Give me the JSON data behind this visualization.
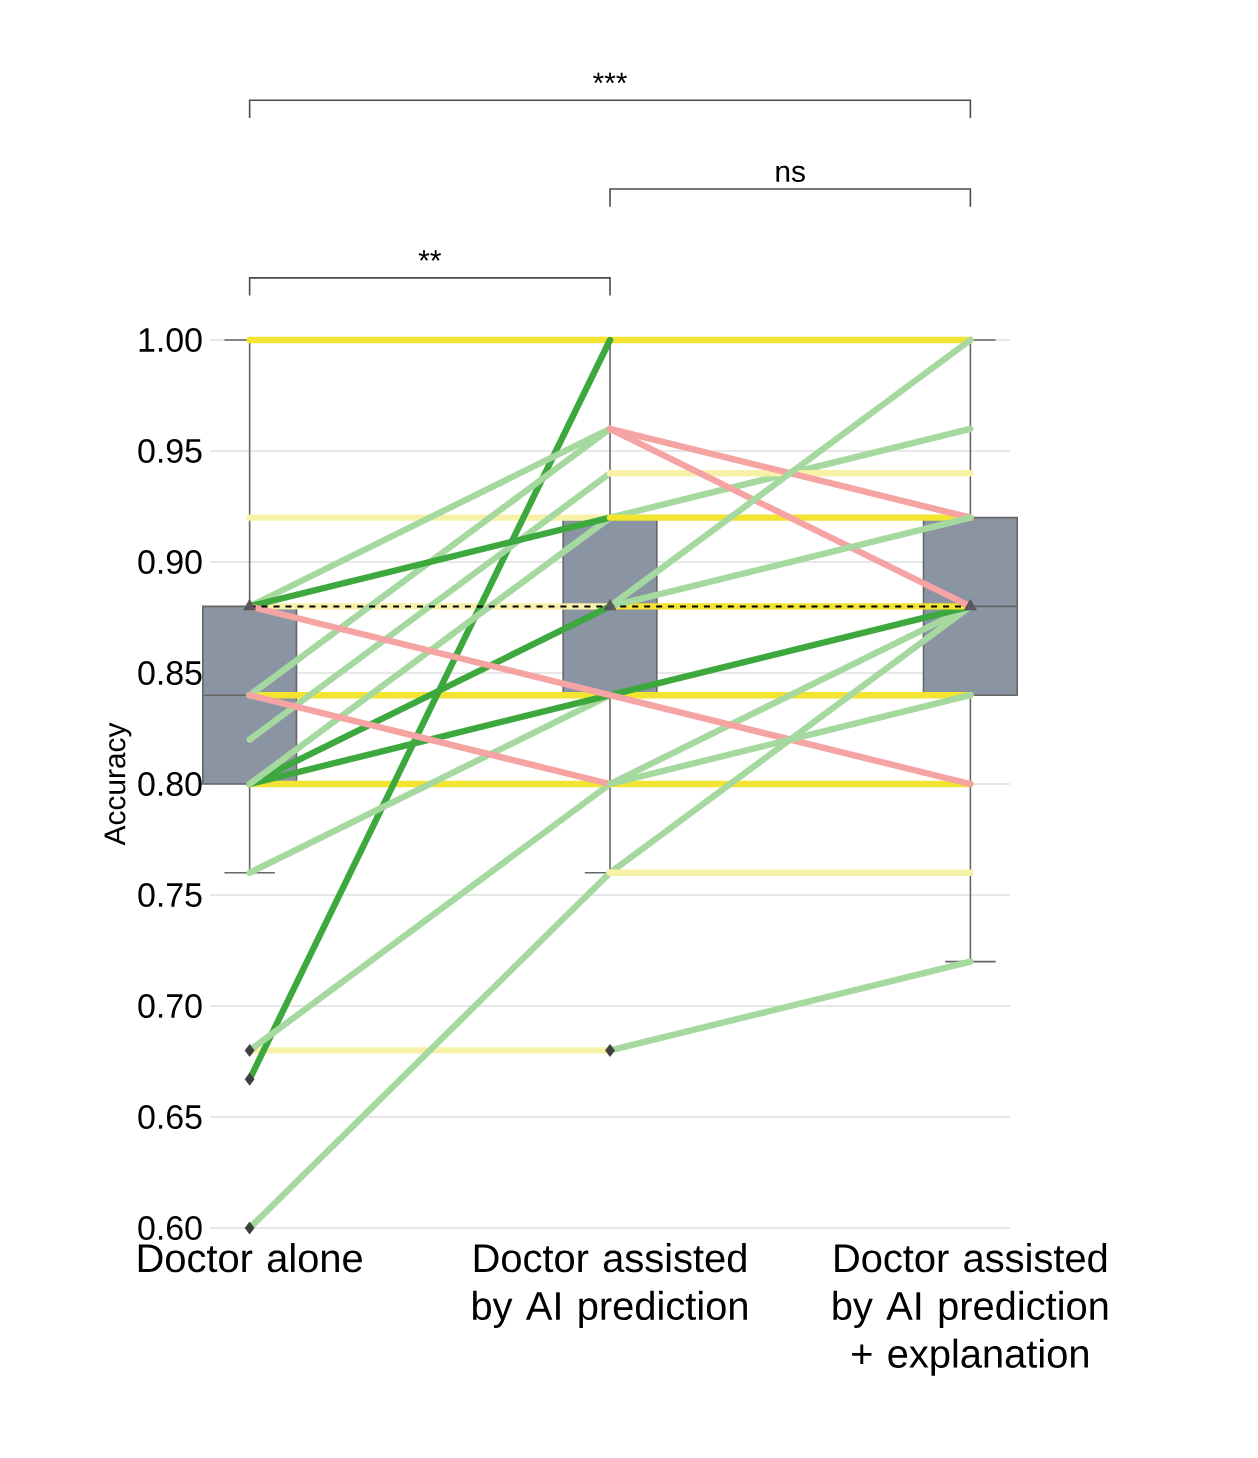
{
  "chart_data": {
    "type": "box",
    "ylabel": "Accuracy",
    "categories": [
      "Doctor alone",
      "Doctor assisted by AI prediction",
      "Doctor assisted by AI prediction + explanation"
    ],
    "color": "#8a94a3",
    "boxes": [
      {
        "low": 0.76,
        "q1": 0.8,
        "median": 0.84,
        "q3": 0.88,
        "high": 1.0,
        "mean": 0.88,
        "outliers": [
          0.68,
          0.667,
          0.6
        ]
      },
      {
        "low": 0.76,
        "q1": 0.84,
        "median": 0.88,
        "q3": 0.92,
        "high": 1.0,
        "mean": 0.88,
        "outliers": [
          0.68
        ]
      },
      {
        "low": 0.72,
        "q1": 0.84,
        "median": 0.88,
        "q3": 0.92,
        "high": 1.0,
        "mean": 0.88
      }
    ],
    "series": [
      {
        "type": "line",
        "color": "#f2e430",
        "values": [
          1.0,
          1.0,
          1.0
        ]
      },
      {
        "type": "line",
        "color": "#f8f1a8",
        "values": [
          0.92,
          0.92,
          null
        ]
      },
      {
        "type": "line",
        "color": "#f8f1a8",
        "values": [
          0.88,
          0.88,
          null
        ]
      },
      {
        "type": "line",
        "color": "#f2e430",
        "values": [
          0.84,
          0.84,
          0.84
        ]
      },
      {
        "type": "line",
        "color": "#f2e430",
        "values": [
          0.8,
          0.8,
          0.8
        ]
      },
      {
        "type": "line",
        "color": "#f8f1a8",
        "values": [
          0.68,
          0.68,
          null
        ]
      },
      {
        "type": "line",
        "color": "#3da83d",
        "values": [
          0.667,
          1.0,
          null
        ]
      },
      {
        "type": "line",
        "color": "#a6d9a0",
        "values": [
          0.6,
          0.76,
          0.88
        ]
      },
      {
        "type": "line",
        "color": "#a6d9a0",
        "values": [
          0.68,
          0.8,
          0.88
        ]
      },
      {
        "type": "line",
        "color": "#a6d9a0",
        "values": [
          0.76,
          0.84,
          null
        ]
      },
      {
        "type": "line",
        "color": "#3da83d",
        "values": [
          0.8,
          0.84,
          0.88
        ]
      },
      {
        "type": "line",
        "color": "#3da83d",
        "values": [
          0.8,
          0.88,
          null
        ]
      },
      {
        "type": "line",
        "color": "#a6d9a0",
        "values": [
          0.8,
          0.92,
          0.96
        ]
      },
      {
        "type": "line",
        "color": "#a6d9a0",
        "values": [
          0.82,
          0.94,
          null
        ]
      },
      {
        "type": "line",
        "color": "#a6d9a0",
        "values": [
          0.84,
          0.96,
          null
        ]
      },
      {
        "type": "line",
        "color": "#a6d9a0",
        "values": [
          0.88,
          0.96,
          null
        ]
      },
      {
        "type": "line",
        "color": "#3da83d",
        "values": [
          0.88,
          0.92,
          null
        ]
      },
      {
        "type": "line",
        "color": "#f6a3a3",
        "values": [
          0.88,
          0.84,
          0.8
        ]
      },
      {
        "type": "line",
        "color": "#f6a3a3",
        "values": [
          0.84,
          0.8,
          null
        ]
      },
      {
        "type": "line",
        "color": "#f8f1a8",
        "values": [
          null,
          0.94,
          0.94
        ]
      },
      {
        "type": "line",
        "color": "#f2e430",
        "values": [
          null,
          0.92,
          0.92
        ]
      },
      {
        "type": "line",
        "color": "#f2e430",
        "values": [
          null,
          0.88,
          0.88
        ]
      },
      {
        "type": "line",
        "color": "#f8f1a8",
        "values": [
          null,
          0.76,
          0.76
        ]
      },
      {
        "type": "line",
        "color": "#f6a3a3",
        "values": [
          null,
          0.96,
          0.92
        ]
      },
      {
        "type": "line",
        "color": "#f6a3a3",
        "values": [
          null,
          0.96,
          0.88
        ]
      },
      {
        "type": "line",
        "color": "#a6d9a0",
        "values": [
          null,
          0.88,
          1.0
        ]
      },
      {
        "type": "line",
        "color": "#a6d9a0",
        "values": [
          null,
          0.88,
          0.92
        ]
      },
      {
        "type": "line",
        "color": "#a6d9a0",
        "values": [
          null,
          0.8,
          0.84
        ]
      },
      {
        "type": "line",
        "color": "#a6d9a0",
        "values": [
          null,
          0.68,
          0.72
        ]
      }
    ],
    "ref_lines": [
      {
        "axis": "y",
        "value": 0.88,
        "color": "#000000",
        "line_style": "dashed"
      }
    ],
    "ylim": [
      0.6,
      1.0
    ],
    "yticks": [
      {
        "value": 0.6,
        "label": "0.60"
      },
      {
        "value": 0.65,
        "label": "0.65"
      },
      {
        "value": 0.7,
        "label": "0.70"
      },
      {
        "value": 0.75,
        "label": "0.75"
      },
      {
        "value": 0.8,
        "label": "0.80"
      },
      {
        "value": 0.85,
        "label": "0.85"
      },
      {
        "value": 0.9,
        "label": "0.90"
      },
      {
        "value": 0.95,
        "label": "0.95"
      },
      {
        "value": 1.0,
        "label": "1.00"
      }
    ],
    "grid": "y",
    "marker": "none",
    "annotations": [
      "**",
      "ns",
      "***"
    ]
  }
}
